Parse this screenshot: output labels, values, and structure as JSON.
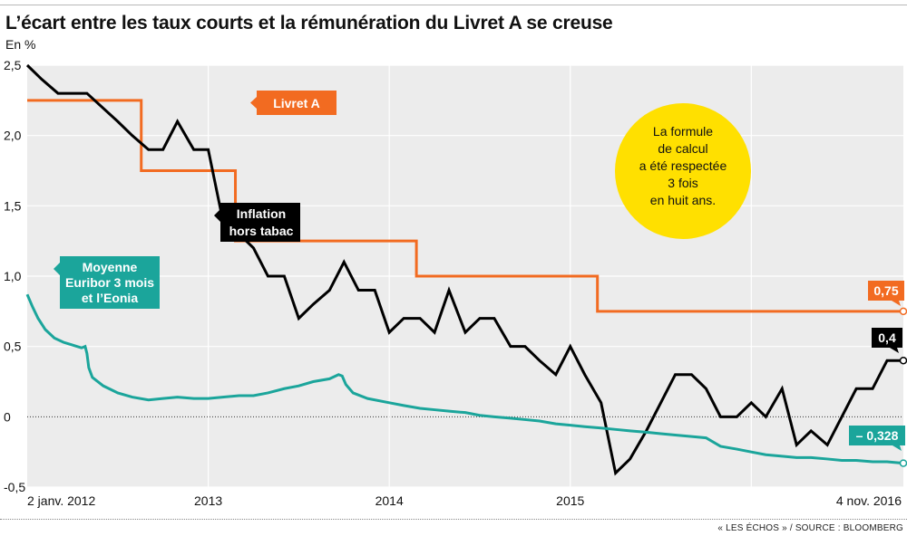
{
  "header": {
    "title": "L’écart entre les taux courts et la rémunération du Livret A se creuse",
    "unit": "En %"
  },
  "footer": {
    "source": "« LES ÉCHOS » / SOURCE : BLOOMBERG"
  },
  "callout": {
    "lines": [
      "La formule",
      "de calcul",
      "a été respectée",
      "3 fois",
      "en huit ans."
    ]
  },
  "colors": {
    "livret": "#f26b21",
    "inflation": "#000000",
    "euribor": "#1ba59b",
    "callout": "#ffe000",
    "plot_bg": "#ececec"
  },
  "chart_data": {
    "type": "line",
    "title": "L’écart entre les taux courts et la rémunération du Livret A se creuse",
    "ylabel": "En %",
    "ylim": [
      -0.5,
      2.5
    ],
    "yticks": [
      -0.5,
      0,
      0.5,
      1.0,
      1.5,
      2.0,
      2.5
    ],
    "ytick_labels": [
      "-0,5",
      "0",
      "0,5",
      "1,0",
      "1,5",
      "2,0",
      "2,5"
    ],
    "xlim": [
      2012.0,
      2016.84
    ],
    "xticks": [
      {
        "x": 2012.0,
        "label": "2 janv. 2012"
      },
      {
        "x": 2013.0,
        "label": "2013"
      },
      {
        "x": 2014.0,
        "label": "2014"
      },
      {
        "x": 2015.0,
        "label": "2015"
      },
      {
        "x": 2016.84,
        "label": "4 nov. 2016"
      }
    ],
    "year_gridlines": [
      2013.0,
      2014.0,
      2015.0,
      2016.0
    ],
    "series": [
      {
        "name": "Livret A",
        "label_lines": [
          "Livret A"
        ],
        "end_label": "0,75",
        "step": true,
        "x": [
          2012.0,
          2012.63,
          2013.15,
          2014.15,
          2015.15,
          2016.84
        ],
        "y": [
          2.25,
          1.75,
          1.25,
          1.0,
          0.75,
          0.75
        ]
      },
      {
        "name": "Inflation hors tabac",
        "label_lines": [
          "Inflation",
          "hors tabac"
        ],
        "end_label": "0,4",
        "step": false,
        "x": [
          2012.0,
          2012.08,
          2012.17,
          2012.33,
          2012.5,
          2012.58,
          2012.67,
          2012.75,
          2012.83,
          2012.92,
          2013.0,
          2013.08,
          2013.17,
          2013.25,
          2013.33,
          2013.42,
          2013.5,
          2013.58,
          2013.67,
          2013.75,
          2013.83,
          2013.92,
          2014.0,
          2014.08,
          2014.17,
          2014.25,
          2014.33,
          2014.42,
          2014.5,
          2014.58,
          2014.67,
          2014.75,
          2014.83,
          2014.92,
          2015.0,
          2015.08,
          2015.17,
          2015.25,
          2015.33,
          2015.42,
          2015.5,
          2015.58,
          2015.67,
          2015.75,
          2015.83,
          2015.92,
          2016.0,
          2016.08,
          2016.17,
          2016.25,
          2016.33,
          2016.42,
          2016.5,
          2016.58,
          2016.67,
          2016.75,
          2016.84
        ],
        "y": [
          2.5,
          2.4,
          2.3,
          2.3,
          2.1,
          2.0,
          1.9,
          1.9,
          2.1,
          1.9,
          1.9,
          1.4,
          1.3,
          1.2,
          1.0,
          1.0,
          0.7,
          0.8,
          0.9,
          1.1,
          0.9,
          0.9,
          0.6,
          0.7,
          0.7,
          0.6,
          0.9,
          0.6,
          0.7,
          0.7,
          0.5,
          0.5,
          0.4,
          0.3,
          0.5,
          0.3,
          0.1,
          -0.4,
          -0.3,
          -0.1,
          0.1,
          0.3,
          0.3,
          0.2,
          0.0,
          0.0,
          0.1,
          0.0,
          0.2,
          -0.2,
          -0.1,
          -0.2,
          0.0,
          0.2,
          0.2,
          0.4,
          0.4
        ]
      },
      {
        "name": "Moyenne Euribor 3 mois et l’Eonia",
        "label_lines": [
          "Moyenne",
          "Euribor 3 mois",
          "et l’Eonia"
        ],
        "end_label": "– 0,328",
        "step": false,
        "x": [
          2012.0,
          2012.03,
          2012.06,
          2012.1,
          2012.15,
          2012.2,
          2012.25,
          2012.3,
          2012.32,
          2012.33,
          2012.34,
          2012.36,
          2012.42,
          2012.5,
          2012.58,
          2012.67,
          2012.75,
          2012.83,
          2012.92,
          2013.0,
          2013.08,
          2013.17,
          2013.25,
          2013.33,
          2013.42,
          2013.5,
          2013.58,
          2013.67,
          2013.72,
          2013.74,
          2013.76,
          2013.8,
          2013.88,
          2014.0,
          2014.08,
          2014.17,
          2014.25,
          2014.33,
          2014.42,
          2014.5,
          2014.58,
          2014.67,
          2014.75,
          2014.83,
          2014.92,
          2015.0,
          2015.08,
          2015.17,
          2015.25,
          2015.33,
          2015.42,
          2015.5,
          2015.58,
          2015.67,
          2015.75,
          2015.83,
          2015.92,
          2016.0,
          2016.08,
          2016.17,
          2016.25,
          2016.33,
          2016.42,
          2016.5,
          2016.58,
          2016.67,
          2016.75,
          2016.84
        ],
        "y": [
          0.87,
          0.78,
          0.7,
          0.62,
          0.56,
          0.53,
          0.51,
          0.49,
          0.5,
          0.45,
          0.35,
          0.28,
          0.22,
          0.17,
          0.14,
          0.12,
          0.13,
          0.14,
          0.13,
          0.13,
          0.14,
          0.15,
          0.15,
          0.17,
          0.2,
          0.22,
          0.25,
          0.27,
          0.3,
          0.29,
          0.23,
          0.17,
          0.13,
          0.1,
          0.08,
          0.06,
          0.05,
          0.04,
          0.03,
          0.01,
          0.0,
          -0.01,
          -0.02,
          -0.03,
          -0.05,
          -0.06,
          -0.07,
          -0.08,
          -0.09,
          -0.1,
          -0.11,
          -0.12,
          -0.13,
          -0.14,
          -0.15,
          -0.21,
          -0.23,
          -0.25,
          -0.27,
          -0.28,
          -0.29,
          -0.29,
          -0.3,
          -0.31,
          -0.31,
          -0.32,
          -0.32,
          -0.33
        ]
      }
    ]
  }
}
